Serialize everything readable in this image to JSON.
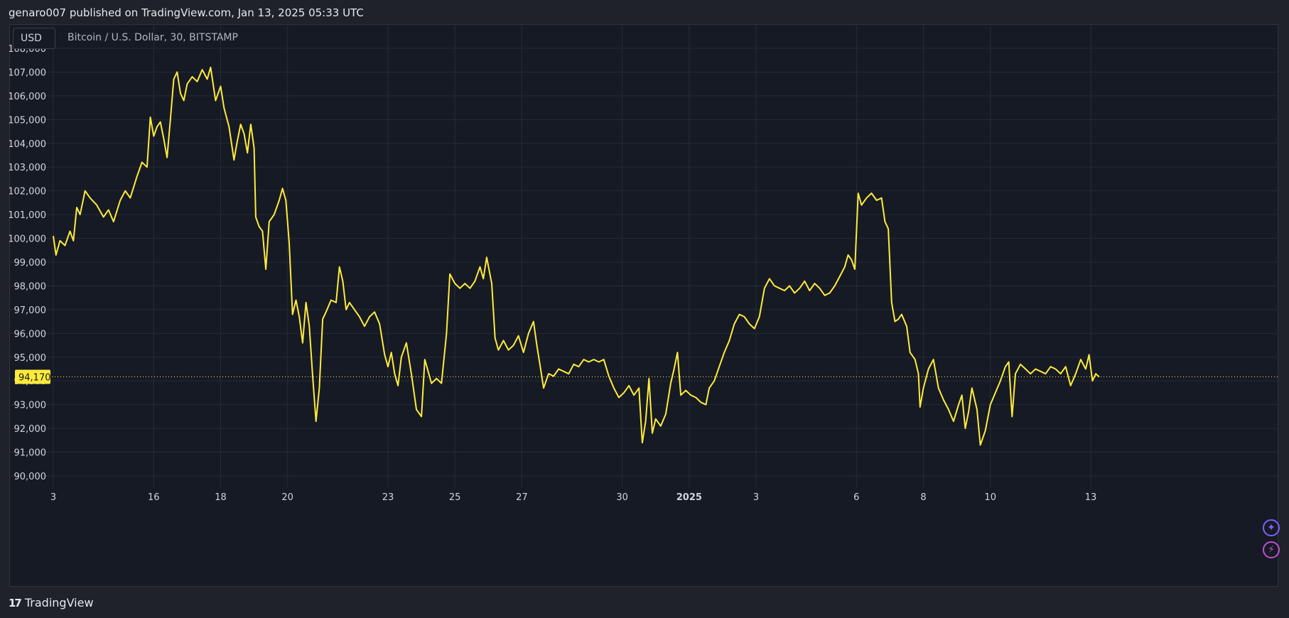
{
  "header": {
    "published_text": "genaro007 published on TradingView.com, Jan 13, 2025 05:33 UTC"
  },
  "toolbar": {
    "currency": "USD",
    "symbol": "Bitcoin / U.S. Dollar, 30, BITSTAMP"
  },
  "footer": {
    "brand": "TradingView",
    "brand_mark": "17"
  },
  "side_buttons": [
    {
      "name": "sparkle",
      "icon": "sparkle-icon",
      "glyph": "✦"
    },
    {
      "name": "bolt",
      "icon": "bolt-icon",
      "glyph": "⚡"
    }
  ],
  "colors": {
    "line": "#ffeb3b",
    "last_price_badge": "#ffeb3b",
    "background": "#161a25",
    "page": "#1f222b"
  },
  "chart_data": {
    "type": "line",
    "title": "Bitcoin / U.S. Dollar, 30, BITSTAMP",
    "interval": "30",
    "exchange": "BITSTAMP",
    "currency": "USD",
    "ylim": [
      89800,
      108100
    ],
    "y_ticks": [
      90000,
      91000,
      92000,
      93000,
      94000,
      95000,
      96000,
      97000,
      98000,
      99000,
      100000,
      101000,
      102000,
      103000,
      104000,
      105000,
      106000,
      107000,
      108000
    ],
    "y_tick_labels": [
      "90,000",
      "91,000",
      "92,000",
      "93,000",
      "94,000",
      "95,000",
      "96,000",
      "97,000",
      "98,000",
      "99,000",
      "100,000",
      "101,000",
      "102,000",
      "103,000",
      "104,000",
      "105,000",
      "106,000",
      "107,000",
      "108,000"
    ],
    "x_ticks": [
      {
        "label": "3",
        "x": 0,
        "bold": false
      },
      {
        "label": "16",
        "x": 3,
        "bold": false
      },
      {
        "label": "18",
        "x": 5,
        "bold": false
      },
      {
        "label": "20",
        "x": 7,
        "bold": false
      },
      {
        "label": "23",
        "x": 10,
        "bold": false
      },
      {
        "label": "25",
        "x": 12,
        "bold": false
      },
      {
        "label": "27",
        "x": 14,
        "bold": false
      },
      {
        "label": "30",
        "x": 17,
        "bold": false
      },
      {
        "label": "2025",
        "x": 19,
        "bold": true
      },
      {
        "label": "3",
        "x": 21,
        "bold": false
      },
      {
        "label": "6",
        "x": 24,
        "bold": false
      },
      {
        "label": "8",
        "x": 26,
        "bold": false
      },
      {
        "label": "10",
        "x": 28,
        "bold": false
      },
      {
        "label": "13",
        "x": 31,
        "bold": false
      }
    ],
    "last_price": 94170,
    "last_price_label": "94,170",
    "series": [
      {
        "points": [
          [
            0.0,
            100100
          ],
          [
            0.08,
            99300
          ],
          [
            0.2,
            99900
          ],
          [
            0.35,
            99700
          ],
          [
            0.5,
            100300
          ],
          [
            0.6,
            99900
          ],
          [
            0.7,
            101300
          ],
          [
            0.8,
            101000
          ],
          [
            0.95,
            102000
          ],
          [
            1.1,
            101700
          ],
          [
            1.3,
            101400
          ],
          [
            1.5,
            100900
          ],
          [
            1.65,
            101200
          ],
          [
            1.8,
            100700
          ],
          [
            2.0,
            101600
          ],
          [
            2.15,
            102000
          ],
          [
            2.3,
            101700
          ],
          [
            2.5,
            102600
          ],
          [
            2.65,
            103200
          ],
          [
            2.8,
            103000
          ],
          [
            2.9,
            105100
          ],
          [
            3.0,
            104300
          ],
          [
            3.1,
            104700
          ],
          [
            3.2,
            104900
          ],
          [
            3.3,
            104200
          ],
          [
            3.4,
            103400
          ],
          [
            3.5,
            105000
          ],
          [
            3.6,
            106700
          ],
          [
            3.7,
            107000
          ],
          [
            3.8,
            106100
          ],
          [
            3.9,
            105800
          ],
          [
            4.0,
            106500
          ],
          [
            4.15,
            106800
          ],
          [
            4.3,
            106600
          ],
          [
            4.45,
            107100
          ],
          [
            4.6,
            106700
          ],
          [
            4.7,
            107200
          ],
          [
            4.85,
            105800
          ],
          [
            5.0,
            106400
          ],
          [
            5.1,
            105500
          ],
          [
            5.25,
            104700
          ],
          [
            5.4,
            103300
          ],
          [
            5.5,
            104100
          ],
          [
            5.6,
            104800
          ],
          [
            5.7,
            104400
          ],
          [
            5.8,
            103600
          ],
          [
            5.9,
            104800
          ],
          [
            6.0,
            103800
          ],
          [
            6.05,
            100900
          ],
          [
            6.15,
            100500
          ],
          [
            6.25,
            100300
          ],
          [
            6.35,
            98700
          ],
          [
            6.45,
            100700
          ],
          [
            6.6,
            101000
          ],
          [
            6.75,
            101600
          ],
          [
            6.85,
            102100
          ],
          [
            6.95,
            101600
          ],
          [
            7.05,
            99800
          ],
          [
            7.15,
            96800
          ],
          [
            7.25,
            97400
          ],
          [
            7.35,
            96700
          ],
          [
            7.45,
            95600
          ],
          [
            7.55,
            97300
          ],
          [
            7.65,
            96300
          ],
          [
            7.75,
            94200
          ],
          [
            7.85,
            92300
          ],
          [
            7.95,
            93700
          ],
          [
            8.05,
            96600
          ],
          [
            8.15,
            96900
          ],
          [
            8.3,
            97400
          ],
          [
            8.45,
            97300
          ],
          [
            8.55,
            98800
          ],
          [
            8.65,
            98200
          ],
          [
            8.75,
            97000
          ],
          [
            8.85,
            97300
          ],
          [
            9.0,
            97000
          ],
          [
            9.15,
            96700
          ],
          [
            9.3,
            96300
          ],
          [
            9.45,
            96700
          ],
          [
            9.6,
            96900
          ],
          [
            9.75,
            96400
          ],
          [
            9.9,
            95100
          ],
          [
            10.0,
            94600
          ],
          [
            10.1,
            95200
          ],
          [
            10.2,
            94300
          ],
          [
            10.3,
            93800
          ],
          [
            10.4,
            95000
          ],
          [
            10.55,
            95600
          ],
          [
            10.7,
            94300
          ],
          [
            10.85,
            92800
          ],
          [
            11.0,
            92500
          ],
          [
            11.1,
            94900
          ],
          [
            11.2,
            94400
          ],
          [
            11.3,
            93900
          ],
          [
            11.45,
            94100
          ],
          [
            11.6,
            93900
          ],
          [
            11.75,
            96000
          ],
          [
            11.85,
            98500
          ],
          [
            12.0,
            98100
          ],
          [
            12.15,
            97900
          ],
          [
            12.3,
            98100
          ],
          [
            12.45,
            97900
          ],
          [
            12.6,
            98200
          ],
          [
            12.75,
            98800
          ],
          [
            12.85,
            98300
          ],
          [
            12.95,
            99200
          ],
          [
            13.1,
            98100
          ],
          [
            13.2,
            95800
          ],
          [
            13.3,
            95300
          ],
          [
            13.45,
            95700
          ],
          [
            13.6,
            95300
          ],
          [
            13.75,
            95500
          ],
          [
            13.9,
            95900
          ],
          [
            14.05,
            95200
          ],
          [
            14.2,
            96000
          ],
          [
            14.35,
            96500
          ],
          [
            14.45,
            95500
          ],
          [
            14.55,
            94600
          ],
          [
            14.65,
            93700
          ],
          [
            14.8,
            94300
          ],
          [
            14.95,
            94200
          ],
          [
            15.1,
            94500
          ],
          [
            15.25,
            94400
          ],
          [
            15.4,
            94300
          ],
          [
            15.55,
            94700
          ],
          [
            15.7,
            94600
          ],
          [
            15.85,
            94900
          ],
          [
            16.0,
            94800
          ],
          [
            16.15,
            94900
          ],
          [
            16.3,
            94800
          ],
          [
            16.45,
            94900
          ],
          [
            16.6,
            94200
          ],
          [
            16.75,
            93700
          ],
          [
            16.9,
            93300
          ],
          [
            17.05,
            93500
          ],
          [
            17.2,
            93800
          ],
          [
            17.35,
            93400
          ],
          [
            17.5,
            93700
          ],
          [
            17.6,
            91400
          ],
          [
            17.7,
            92300
          ],
          [
            17.8,
            94100
          ],
          [
            17.9,
            91800
          ],
          [
            18.0,
            92400
          ],
          [
            18.15,
            92100
          ],
          [
            18.3,
            92600
          ],
          [
            18.45,
            93900
          ],
          [
            18.55,
            94500
          ],
          [
            18.65,
            95200
          ],
          [
            18.75,
            93400
          ],
          [
            18.9,
            93600
          ],
          [
            19.05,
            93400
          ],
          [
            19.2,
            93300
          ],
          [
            19.35,
            93100
          ],
          [
            19.5,
            93000
          ],
          [
            19.6,
            93700
          ],
          [
            19.75,
            94000
          ],
          [
            19.9,
            94600
          ],
          [
            20.05,
            95200
          ],
          [
            20.2,
            95700
          ],
          [
            20.35,
            96400
          ],
          [
            20.5,
            96800
          ],
          [
            20.65,
            96700
          ],
          [
            20.8,
            96400
          ],
          [
            20.95,
            96200
          ],
          [
            21.1,
            96700
          ],
          [
            21.25,
            97900
          ],
          [
            21.4,
            98300
          ],
          [
            21.55,
            98000
          ],
          [
            21.7,
            97900
          ],
          [
            21.85,
            97800
          ],
          [
            22.0,
            98000
          ],
          [
            22.15,
            97700
          ],
          [
            22.3,
            97900
          ],
          [
            22.45,
            98200
          ],
          [
            22.6,
            97800
          ],
          [
            22.75,
            98100
          ],
          [
            22.9,
            97900
          ],
          [
            23.05,
            97600
          ],
          [
            23.2,
            97700
          ],
          [
            23.35,
            98000
          ],
          [
            23.5,
            98400
          ],
          [
            23.65,
            98800
          ],
          [
            23.75,
            99300
          ],
          [
            23.85,
            99100
          ],
          [
            23.95,
            98700
          ],
          [
            24.05,
            101900
          ],
          [
            24.15,
            101400
          ],
          [
            24.3,
            101700
          ],
          [
            24.45,
            101900
          ],
          [
            24.6,
            101600
          ],
          [
            24.75,
            101700
          ],
          [
            24.85,
            100700
          ],
          [
            24.95,
            100400
          ],
          [
            25.05,
            97300
          ],
          [
            25.15,
            96500
          ],
          [
            25.25,
            96600
          ],
          [
            25.35,
            96800
          ],
          [
            25.5,
            96300
          ],
          [
            25.6,
            95200
          ],
          [
            25.75,
            94900
          ],
          [
            25.85,
            94300
          ],
          [
            25.9,
            92900
          ],
          [
            26.0,
            93700
          ],
          [
            26.15,
            94500
          ],
          [
            26.3,
            94900
          ],
          [
            26.45,
            93700
          ],
          [
            26.6,
            93200
          ],
          [
            26.75,
            92800
          ],
          [
            26.9,
            92300
          ],
          [
            27.05,
            93000
          ],
          [
            27.15,
            93400
          ],
          [
            27.25,
            92000
          ],
          [
            27.35,
            92700
          ],
          [
            27.45,
            93700
          ],
          [
            27.6,
            92800
          ],
          [
            27.7,
            91300
          ],
          [
            27.85,
            91900
          ],
          [
            28.0,
            93000
          ],
          [
            28.15,
            93500
          ],
          [
            28.3,
            94000
          ],
          [
            28.45,
            94600
          ],
          [
            28.55,
            94800
          ],
          [
            28.65,
            92500
          ],
          [
            28.75,
            94300
          ],
          [
            28.9,
            94700
          ],
          [
            29.05,
            94500
          ],
          [
            29.2,
            94300
          ],
          [
            29.35,
            94500
          ],
          [
            29.5,
            94400
          ],
          [
            29.65,
            94300
          ],
          [
            29.8,
            94600
          ],
          [
            29.95,
            94500
          ],
          [
            30.1,
            94300
          ],
          [
            30.25,
            94600
          ],
          [
            30.4,
            93800
          ],
          [
            30.55,
            94300
          ],
          [
            30.7,
            94900
          ],
          [
            30.85,
            94500
          ],
          [
            30.95,
            95100
          ],
          [
            31.05,
            94000
          ],
          [
            31.15,
            94300
          ],
          [
            31.25,
            94170
          ]
        ]
      }
    ]
  }
}
